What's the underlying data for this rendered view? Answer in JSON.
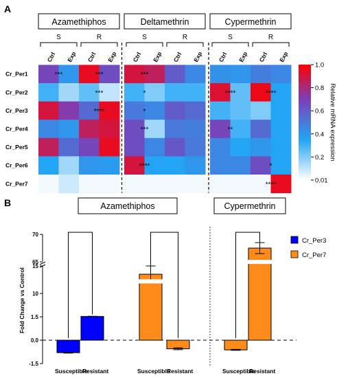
{
  "panels": {
    "a": {
      "label": "A"
    },
    "b": {
      "label": "B"
    }
  },
  "colors": {
    "scale": [
      "#ffffff",
      "#23a4f4",
      "#7b3fb7",
      "#ff0000"
    ],
    "per3": "#0000ff",
    "per7": "#ff8c1a"
  },
  "chart_data": [
    {
      "type": "heatmap",
      "groups": [
        {
          "name": "Azamethiphos",
          "subgroups": [
            "S",
            "R"
          ]
        },
        {
          "name": "Deltamethrin",
          "subgroups": [
            "S",
            "R"
          ]
        },
        {
          "name": "Cypermethrin",
          "subgroups": [
            "S",
            "R"
          ]
        }
      ],
      "conditions": [
        "Ctrl",
        "Exp"
      ],
      "columns_per_group": [
        "Ctrl",
        "Exp",
        "Ctrl",
        "Exp"
      ],
      "rows": [
        "Cr_Per1",
        "Cr_Per2",
        "Cr_Per3",
        "Cr_Per4",
        "Cr_Per5",
        "Cr_Per6",
        "Cr_Per7"
      ],
      "values": [
        [
          0.68,
          0.4,
          0.95,
          0.65,
          0.9,
          0.85,
          0.6,
          0.45,
          0.42,
          0.4,
          0.48,
          0.45
        ],
        [
          0.3,
          0.15,
          0.25,
          0.1,
          0.3,
          0.2,
          0.3,
          0.3,
          0.92,
          0.25,
          0.96,
          0.35
        ],
        [
          0.9,
          0.72,
          0.55,
          0.95,
          0.5,
          0.45,
          0.6,
          0.55,
          0.3,
          0.25,
          0.2,
          0.35
        ],
        [
          0.45,
          0.4,
          0.85,
          0.9,
          0.65,
          0.15,
          0.5,
          0.48,
          0.68,
          0.3,
          0.55,
          0.35
        ],
        [
          0.85,
          0.55,
          0.68,
          0.95,
          0.65,
          0.45,
          0.62,
          0.5,
          0.45,
          0.35,
          0.4,
          0.35
        ],
        [
          0.35,
          0.15,
          0.4,
          0.38,
          0.9,
          0.35,
          0.35,
          0.4,
          0.45,
          0.45,
          0.65,
          0.35
        ],
        [
          0.02,
          0.08,
          0.02,
          0.02,
          0.02,
          0.02,
          0.02,
          0.02,
          0.02,
          0.02,
          0.02,
          0.95
        ]
      ],
      "annotations": [
        {
          "row": 0,
          "col": 0,
          "text": "***"
        },
        {
          "row": 0,
          "col": 2,
          "text": "***"
        },
        {
          "row": 0,
          "col": 4,
          "text": "***"
        },
        {
          "row": 1,
          "col": 2,
          "text": "***"
        },
        {
          "row": 1,
          "col": 4,
          "text": "*"
        },
        {
          "row": 1,
          "col": 8,
          "text": "****"
        },
        {
          "row": 1,
          "col": 10,
          "text": "****"
        },
        {
          "row": 2,
          "col": 2,
          "text": "****"
        },
        {
          "row": 2,
          "col": 4,
          "text": "*"
        },
        {
          "row": 3,
          "col": 4,
          "text": "***"
        },
        {
          "row": 3,
          "col": 8,
          "text": "**"
        },
        {
          "row": 5,
          "col": 4,
          "text": "****"
        },
        {
          "row": 5,
          "col": 10,
          "text": "*"
        },
        {
          "row": 6,
          "col": 10,
          "text": "****"
        }
      ],
      "colorbar": {
        "label": "Relative mRNA expression",
        "ticks": [
          "1.0",
          "0.8",
          "0.6",
          "0.4",
          "0.2",
          "0.01"
        ],
        "range": [
          0.01,
          1.0
        ]
      }
    },
    {
      "type": "bar",
      "groups": [
        "Azamethiphos",
        "Cypermethrin"
      ],
      "categories": [
        "Susceptible",
        "Resistant"
      ],
      "ylabel": "Fold Change vs Control",
      "y_ticks": [
        "70",
        "65",
        "15",
        "10",
        "1.5",
        "0.0",
        "-1.5"
      ],
      "axis": "broken",
      "bars": [
        {
          "group": "Azamethiphos",
          "category": "Susceptible",
          "series": "Cr_Per3",
          "value": -0.8,
          "error": 0.03
        },
        {
          "group": "Azamethiphos",
          "category": "Resistant",
          "series": "Cr_Per3",
          "value": 1.65,
          "error": 0.05
        },
        {
          "group": "Azamethiphos",
          "category": "Susceptible",
          "series": "Cr_Per7",
          "value": 13.5,
          "error": 1.5
        },
        {
          "group": "Azamethiphos",
          "category": "Resistant",
          "series": "Cr_Per7",
          "value": -0.55,
          "error": 0.06
        },
        {
          "group": "Cypermethrin",
          "category": "Susceptible",
          "series": "Cr_Per7",
          "value": -0.62,
          "error": 0.03
        },
        {
          "group": "Cypermethrin",
          "category": "Resistant",
          "series": "Cr_Per7",
          "value": 67.5,
          "error": 1.0
        }
      ],
      "series": [
        {
          "name": "Cr_Per3"
        },
        {
          "name": "Cr_Per7"
        }
      ]
    }
  ]
}
